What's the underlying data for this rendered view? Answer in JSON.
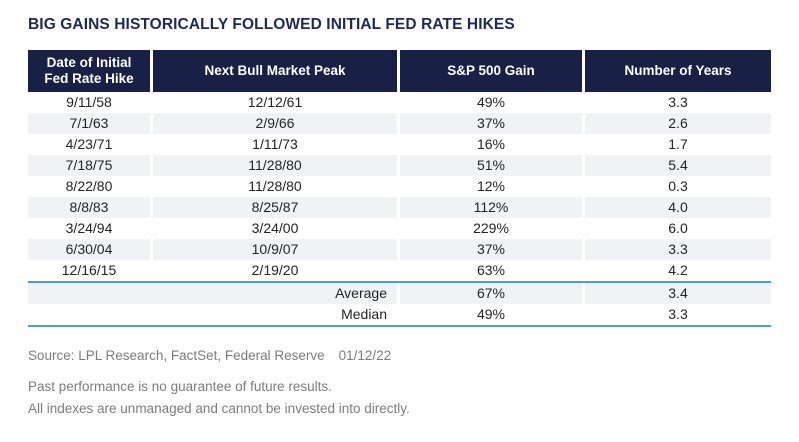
{
  "title": "BIG GAINS HISTORICALLY FOLLOWED INITIAL FED RATE HIKES",
  "colors": {
    "header_navy": "#182145",
    "title_navy": "#1b2a5a",
    "row_alt_gray": "#f1f2f4",
    "blue_rule": "#49a0d8",
    "body_text": "#242424",
    "footer_gray": "#7c7c7c"
  },
  "chart_data": {
    "type": "table",
    "title": "BIG GAINS HISTORICALLY FOLLOWED INITIAL FED RATE HIKES",
    "columns": [
      "Date of Initial Fed Rate Hike",
      "Next Bull Market Peak",
      "S&P 500 Gain",
      "Number of Years"
    ],
    "rows": [
      [
        "9/11/58",
        "12/12/61",
        "49%",
        "3.3"
      ],
      [
        "7/1/63",
        "2/9/66",
        "37%",
        "2.6"
      ],
      [
        "4/23/71",
        "1/11/73",
        "16%",
        "1.7"
      ],
      [
        "7/18/75",
        "11/28/80",
        "51%",
        "5.4"
      ],
      [
        "8/22/80",
        "11/28/80",
        "12%",
        "0.3"
      ],
      [
        "8/8/83",
        "8/25/87",
        "112%",
        "4.0"
      ],
      [
        "3/24/94",
        "3/24/00",
        "229%",
        "6.0"
      ],
      [
        "6/30/04",
        "10/9/07",
        "37%",
        "3.3"
      ],
      [
        "12/16/15",
        "2/19/20",
        "63%",
        "4.2"
      ]
    ],
    "summary_rows": [
      [
        "Average",
        "67%",
        "3.4"
      ],
      [
        "Median",
        "49%",
        "3.3"
      ]
    ]
  },
  "footer": {
    "source": "Source: LPL Research, FactSet, Federal Reserve",
    "date": "01/12/22",
    "disclaimer1": "Past performance is no guarantee of future results.",
    "disclaimer2": "All indexes are unmanaged and cannot be invested into directly."
  }
}
